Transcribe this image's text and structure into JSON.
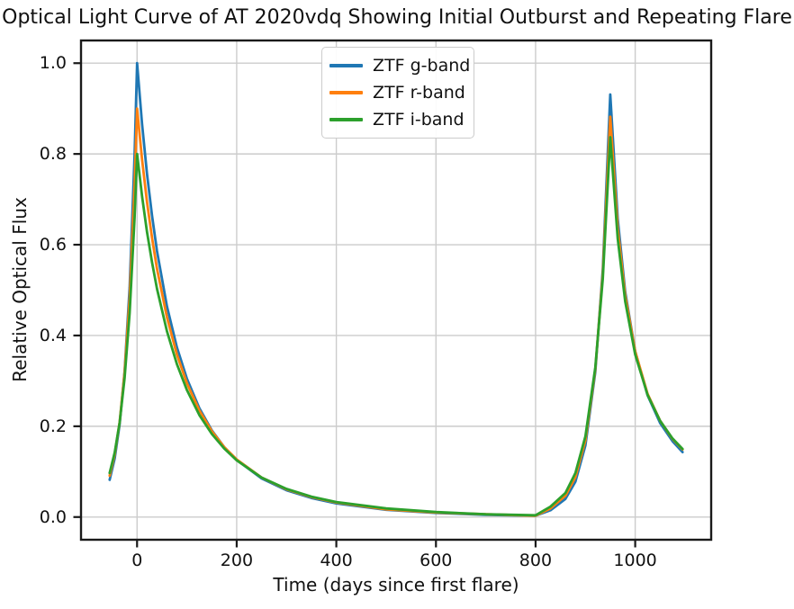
{
  "figure": {
    "title": "Optical Light Curve of AT 2020vdq Showing Initial Outburst and Repeating Flare",
    "background": "#ffffff"
  },
  "styles": {
    "grid_color": "#cccccc",
    "spine_color": "#1a1a1a",
    "tick_color": "#1a1a1a",
    "text_color": "#111111",
    "legend_border_color": "#cccccc",
    "line_width": 2.8
  },
  "chart_data": {
    "type": "line",
    "title": "Optical Light Curve of AT 2020vdq Showing Initial Outburst and Repeating Flare",
    "xlabel": "Time (days since first flare)",
    "ylabel": "Relative Optical Flux",
    "xlim": [
      -112.5,
      1152.5
    ],
    "ylim": [
      -0.05,
      1.05
    ],
    "grid": true,
    "legend_position": "upper center",
    "xticks": [
      0,
      200,
      400,
      600,
      800,
      1000
    ],
    "xtick_labels": [
      "0",
      "200",
      "400",
      "600",
      "800",
      "1000"
    ],
    "yticks": [
      0.0,
      0.2,
      0.4,
      0.6,
      0.8,
      1.0
    ],
    "ytick_labels": [
      "0.0",
      "0.2",
      "0.4",
      "0.6",
      "0.8",
      "1.0"
    ],
    "x": [
      -55,
      -45,
      -35,
      -25,
      -15,
      -5,
      0,
      10,
      20,
      30,
      40,
      60,
      80,
      100,
      125,
      150,
      175,
      200,
      250,
      300,
      350,
      400,
      500,
      600,
      700,
      800,
      830,
      860,
      880,
      900,
      920,
      935,
      950,
      965,
      980,
      1000,
      1025,
      1050,
      1075,
      1095
    ],
    "series": [
      {
        "name": "ZTF g-band",
        "color": "#1f77b4",
        "values": [
          0.082,
          0.129,
          0.204,
          0.321,
          0.506,
          0.797,
          1.0,
          0.866,
          0.756,
          0.664,
          0.586,
          0.464,
          0.374,
          0.305,
          0.24,
          0.191,
          0.154,
          0.126,
          0.085,
          0.059,
          0.042,
          0.03,
          0.016,
          0.009,
          0.005,
          0.003,
          0.015,
          0.04,
          0.078,
          0.158,
          0.32,
          0.546,
          0.931,
          0.657,
          0.496,
          0.365,
          0.268,
          0.207,
          0.167,
          0.143
        ]
      },
      {
        "name": "ZTF r-band",
        "color": "#ff7f0e",
        "values": [
          0.091,
          0.138,
          0.209,
          0.318,
          0.482,
          0.731,
          0.9,
          0.788,
          0.694,
          0.615,
          0.547,
          0.44,
          0.358,
          0.295,
          0.235,
          0.189,
          0.154,
          0.127,
          0.087,
          0.061,
          0.044,
          0.032,
          0.017,
          0.01,
          0.006,
          0.003,
          0.019,
          0.047,
          0.088,
          0.169,
          0.326,
          0.536,
          0.882,
          0.636,
          0.488,
          0.365,
          0.271,
          0.212,
          0.172,
          0.149
        ]
      },
      {
        "name": "ZTF i-band",
        "color": "#2ca02c",
        "values": [
          0.097,
          0.142,
          0.208,
          0.306,
          0.449,
          0.66,
          0.8,
          0.707,
          0.628,
          0.561,
          0.503,
          0.409,
          0.337,
          0.28,
          0.225,
          0.183,
          0.151,
          0.125,
          0.087,
          0.062,
          0.045,
          0.033,
          0.019,
          0.011,
          0.006,
          0.004,
          0.023,
          0.053,
          0.097,
          0.178,
          0.33,
          0.525,
          0.837,
          0.613,
          0.475,
          0.358,
          0.269,
          0.212,
          0.173,
          0.15
        ]
      }
    ]
  }
}
